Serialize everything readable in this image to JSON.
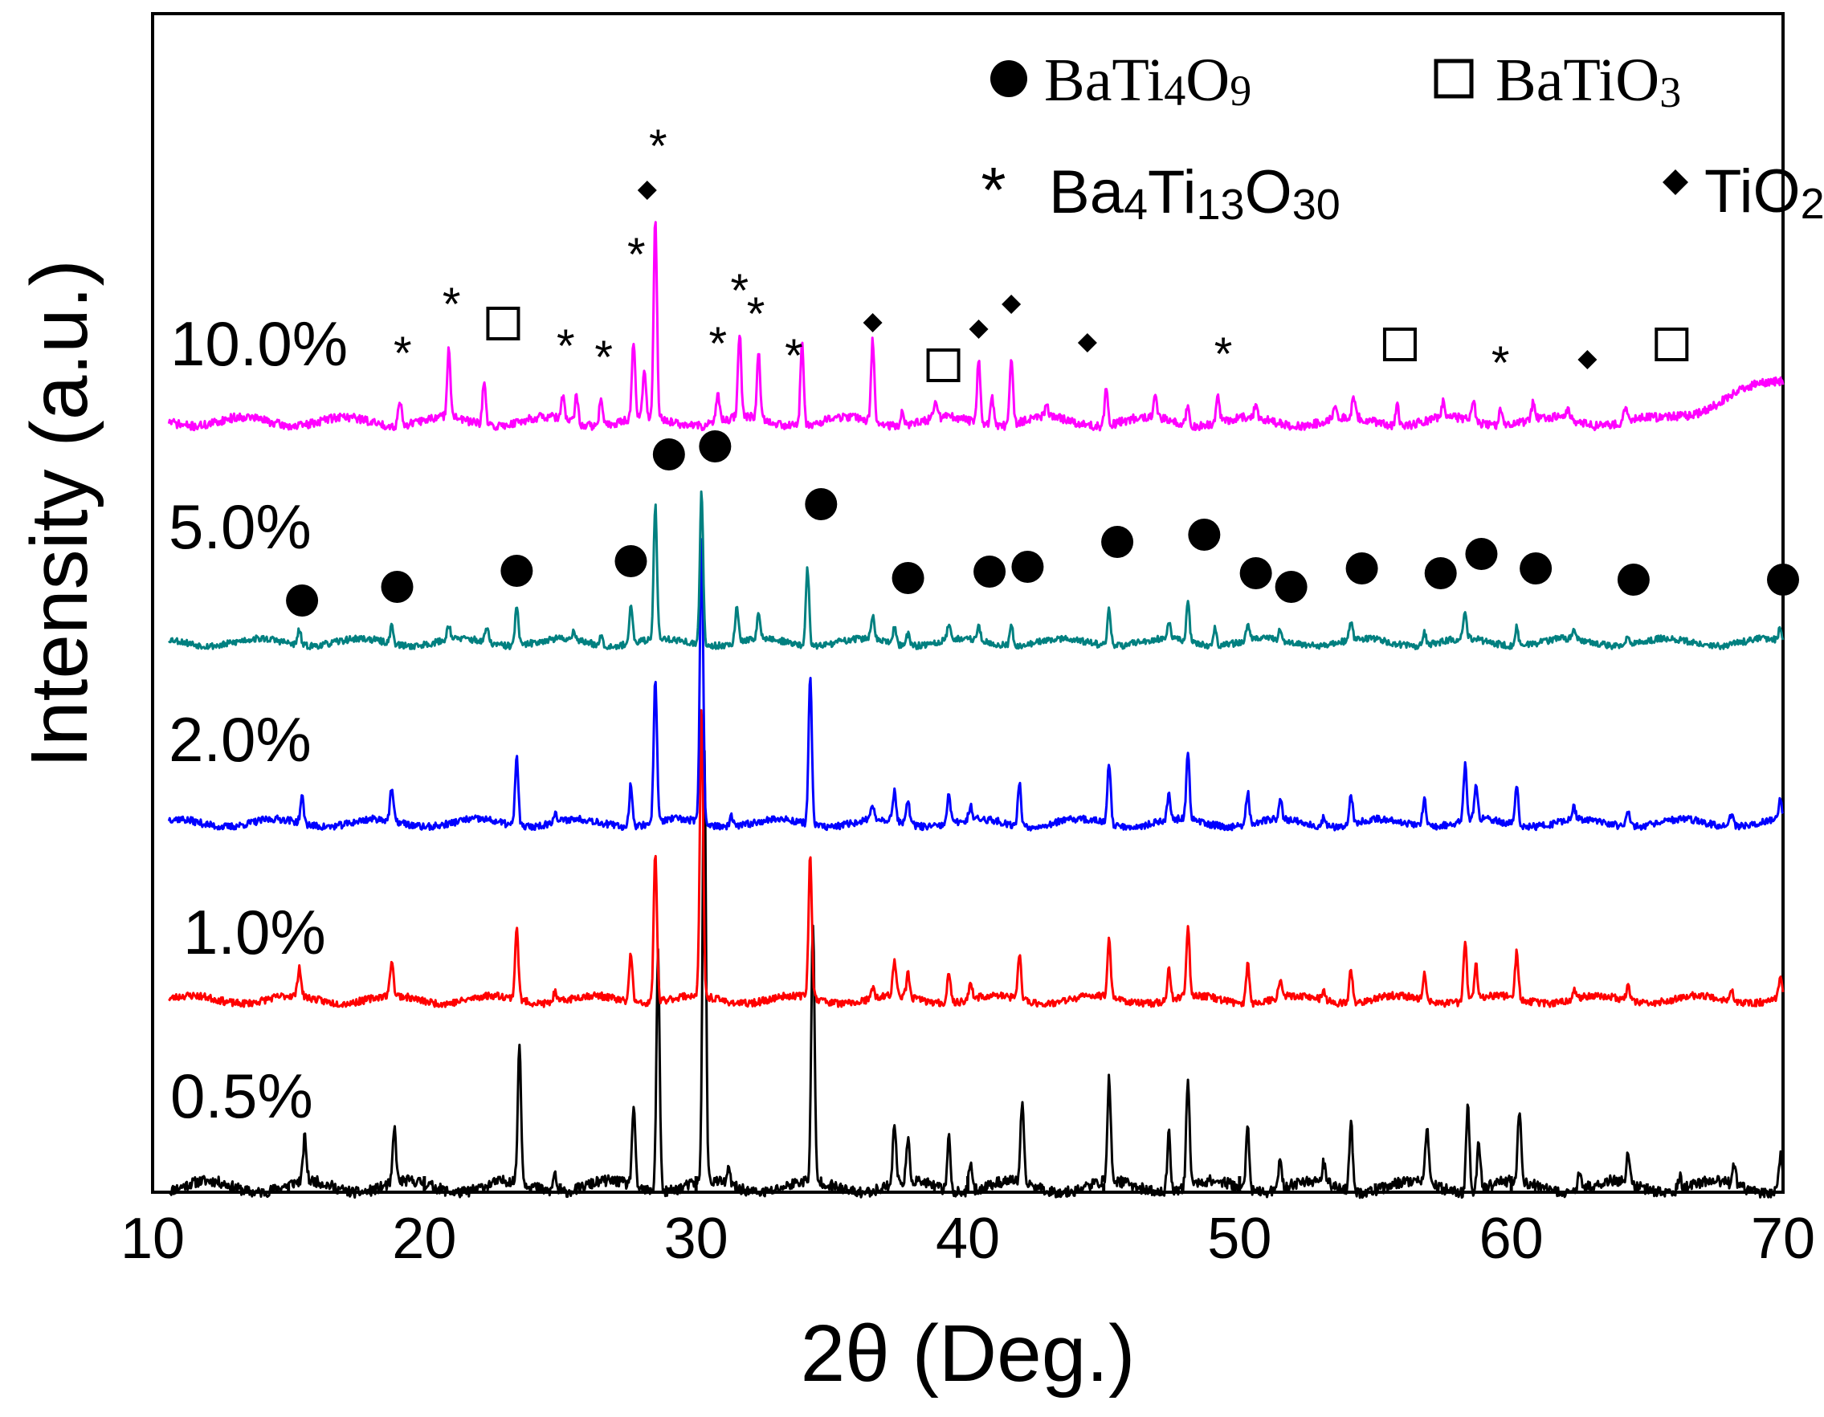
{
  "chart_data": {
    "type": "line",
    "title": "",
    "xlabel": "2θ (Deg.)",
    "ylabel": "Intensity (a.u.)",
    "xlim": [
      10,
      70
    ],
    "xticks": [
      10,
      20,
      30,
      40,
      50,
      60,
      70
    ],
    "xtick_labels": [
      "10",
      "20",
      "30",
      "40",
      "50",
      "60",
      "70"
    ],
    "grid": false,
    "legend": {
      "position": "top-right",
      "entries": [
        {
          "marker": "filled-circle",
          "label": "BaTi4O9",
          "base": "BaTi",
          "sub1": "4",
          "mid": "O",
          "sub2": "9"
        },
        {
          "marker": "open-square",
          "label": "BaTiO3",
          "base": "BaTiO",
          "sub1": "3"
        },
        {
          "marker": "asterisk",
          "label": "Ba4Ti13O30",
          "base": "Ba",
          "sub1": "4",
          "mid": "Ti",
          "sub2": "13",
          "mid2": "O",
          "sub3": "30"
        },
        {
          "marker": "filled-diamond",
          "label": "TiO2",
          "base": "TiO",
          "sub1": "2"
        }
      ]
    },
    "series": [
      {
        "name": "0.5%",
        "label": "0.5%",
        "color": "#000000",
        "offset": 0,
        "noise_seed": 11,
        "peaks": [
          [
            15.6,
            0.9
          ],
          [
            18.9,
            1.1
          ],
          [
            23.5,
            2.8
          ],
          [
            24.8,
            0.4
          ],
          [
            27.7,
            1.6
          ],
          [
            28.6,
            4.9
          ],
          [
            30.3,
            9.0
          ],
          [
            31.2,
            0.3
          ],
          [
            34.3,
            5.2
          ],
          [
            37.3,
            1.2
          ],
          [
            37.8,
            0.8
          ],
          [
            39.3,
            1.1
          ],
          [
            40.1,
            0.6
          ],
          [
            42.0,
            1.6
          ],
          [
            45.2,
            2.1
          ],
          [
            47.4,
            1.2
          ],
          [
            48.1,
            2.2
          ],
          [
            50.3,
            1.3
          ],
          [
            51.5,
            0.6
          ],
          [
            53.1,
            0.4
          ],
          [
            54.1,
            1.4
          ],
          [
            56.9,
            1.1
          ],
          [
            58.4,
            1.8
          ],
          [
            58.8,
            1.0
          ],
          [
            60.3,
            1.5
          ],
          [
            62.5,
            0.3
          ],
          [
            64.3,
            0.6
          ],
          [
            66.2,
            0.3
          ],
          [
            68.2,
            0.4
          ],
          [
            69.9,
            0.7
          ]
        ]
      },
      {
        "name": "1.0%",
        "label": "1.0%",
        "color": "#ff0000",
        "offset": 1,
        "noise_seed": 23,
        "peaks": [
          [
            15.4,
            0.9
          ],
          [
            18.8,
            1.1
          ],
          [
            23.4,
            2.2
          ],
          [
            24.8,
            0.3
          ],
          [
            27.6,
            1.5
          ],
          [
            28.5,
            4.5
          ],
          [
            30.2,
            8.8
          ],
          [
            34.2,
            4.4
          ],
          [
            36.5,
            0.3
          ],
          [
            37.3,
            1.1
          ],
          [
            37.8,
            0.7
          ],
          [
            39.3,
            1.0
          ],
          [
            40.1,
            0.5
          ],
          [
            41.9,
            1.4
          ],
          [
            45.2,
            1.8
          ],
          [
            47.4,
            0.9
          ],
          [
            48.1,
            2.1
          ],
          [
            50.3,
            1.2
          ],
          [
            51.5,
            0.6
          ],
          [
            53.1,
            0.3
          ],
          [
            54.1,
            1.0
          ],
          [
            56.8,
            0.8
          ],
          [
            58.3,
            1.8
          ],
          [
            58.7,
            1.0
          ],
          [
            60.2,
            1.4
          ],
          [
            62.3,
            0.3
          ],
          [
            64.3,
            0.5
          ],
          [
            68.1,
            0.4
          ],
          [
            69.9,
            0.6
          ]
        ]
      },
      {
        "name": "2.0%",
        "label": "2.0%",
        "color": "#0000ff",
        "offset": 2,
        "noise_seed": 37,
        "peaks": [
          [
            15.5,
            0.8
          ],
          [
            18.8,
            1.0
          ],
          [
            23.4,
            2.1
          ],
          [
            24.8,
            0.3
          ],
          [
            27.6,
            1.3
          ],
          [
            28.5,
            4.4
          ],
          [
            30.2,
            8.8
          ],
          [
            31.3,
            0.3
          ],
          [
            34.2,
            4.6
          ],
          [
            36.5,
            0.4
          ],
          [
            37.3,
            0.9
          ],
          [
            37.8,
            0.7
          ],
          [
            39.3,
            0.9
          ],
          [
            40.1,
            0.4
          ],
          [
            41.9,
            1.3
          ],
          [
            45.2,
            1.9
          ],
          [
            47.4,
            0.8
          ],
          [
            48.1,
            2.0
          ],
          [
            50.3,
            1.0
          ],
          [
            51.5,
            0.6
          ],
          [
            53.1,
            0.3
          ],
          [
            54.1,
            0.9
          ],
          [
            56.8,
            0.9
          ],
          [
            58.3,
            1.7
          ],
          [
            58.7,
            1.0
          ],
          [
            60.2,
            1.2
          ],
          [
            62.3,
            0.4
          ],
          [
            64.3,
            0.5
          ],
          [
            68.1,
            0.4
          ],
          [
            69.9,
            0.6
          ]
        ]
      },
      {
        "name": "5.0%",
        "label": "5.0%",
        "color": "#008080",
        "offset": 3,
        "noise_seed": 53,
        "peaks": [
          [
            15.4,
            0.5
          ],
          [
            18.8,
            0.6
          ],
          [
            20.9,
            0.5
          ],
          [
            22.3,
            0.5
          ],
          [
            23.4,
            1.3
          ],
          [
            25.5,
            0.3
          ],
          [
            26.5,
            0.3
          ],
          [
            27.6,
            1.2
          ],
          [
            28.5,
            4.4
          ],
          [
            30.2,
            5.0
          ],
          [
            31.5,
            1.1
          ],
          [
            32.3,
            0.8
          ],
          [
            34.1,
            2.5
          ],
          [
            36.5,
            0.8
          ],
          [
            37.3,
            0.5
          ],
          [
            37.8,
            0.4
          ],
          [
            39.3,
            0.5
          ],
          [
            40.4,
            0.5
          ],
          [
            41.6,
            0.7
          ],
          [
            45.2,
            1.2
          ],
          [
            47.4,
            0.6
          ],
          [
            48.1,
            1.3
          ],
          [
            49.1,
            0.6
          ],
          [
            50.3,
            0.5
          ],
          [
            51.5,
            0.4
          ],
          [
            54.1,
            0.6
          ],
          [
            56.8,
            0.4
          ],
          [
            58.3,
            0.9
          ],
          [
            60.2,
            0.6
          ],
          [
            62.3,
            0.3
          ],
          [
            64.3,
            0.3
          ],
          [
            69.9,
            0.4
          ]
        ]
      },
      {
        "name": "10.0%",
        "label": "10.0%",
        "color": "#ff00ff",
        "offset": 4,
        "noise_seed": 71,
        "peaks": [
          [
            19.1,
            0.7
          ],
          [
            20.9,
            1.8
          ],
          [
            22.2,
            1.1
          ],
          [
            25.1,
            0.6
          ],
          [
            25.6,
            0.7
          ],
          [
            26.5,
            0.7
          ],
          [
            27.7,
            2.0
          ],
          [
            28.1,
            1.2
          ],
          [
            28.5,
            5.1
          ],
          [
            30.8,
            0.8
          ],
          [
            31.6,
            2.2
          ],
          [
            32.3,
            1.7
          ],
          [
            33.9,
            2.1
          ],
          [
            36.5,
            2.1
          ],
          [
            37.6,
            0.4
          ],
          [
            38.8,
            0.4
          ],
          [
            40.4,
            1.7
          ],
          [
            40.9,
            0.7
          ],
          [
            41.6,
            1.7
          ],
          [
            42.9,
            0.3
          ],
          [
            45.1,
            1.0
          ],
          [
            46.9,
            0.6
          ],
          [
            48.1,
            0.5
          ],
          [
            49.2,
            0.8
          ],
          [
            50.6,
            0.3
          ],
          [
            53.5,
            0.3
          ],
          [
            54.2,
            0.5
          ],
          [
            55.8,
            0.6
          ],
          [
            57.5,
            0.4
          ],
          [
            58.6,
            0.6
          ],
          [
            59.6,
            0.4
          ],
          [
            60.8,
            0.4
          ],
          [
            62.1,
            0.3
          ],
          [
            64.2,
            0.3
          ]
        ]
      }
    ],
    "peak_labels": {
      "BaTi4O9_5.0%": [
        15.5,
        19.0,
        23.4,
        27.6,
        29.0,
        30.7,
        34.6,
        37.8,
        40.8,
        42.2,
        45.5,
        48.7,
        50.6,
        51.9,
        54.5,
        57.4,
        58.9,
        60.9,
        64.5,
        70.0
      ],
      "Ba4Ti13O30_10.0%": [
        19.2,
        21.0,
        25.2,
        26.6,
        27.8,
        28.6,
        30.8,
        31.6,
        32.2,
        33.6,
        49.4,
        59.6
      ],
      "TiO2_10.0%": [
        28.2,
        36.5,
        40.4,
        41.6,
        44.4,
        62.8
      ],
      "BaTiO3_10.0%": [
        22.9,
        39.1,
        55.9,
        65.9
      ]
    },
    "sample_labels": [
      "10.0%",
      "5.0%",
      "2.0%",
      "1.0%",
      "0.5%"
    ]
  }
}
